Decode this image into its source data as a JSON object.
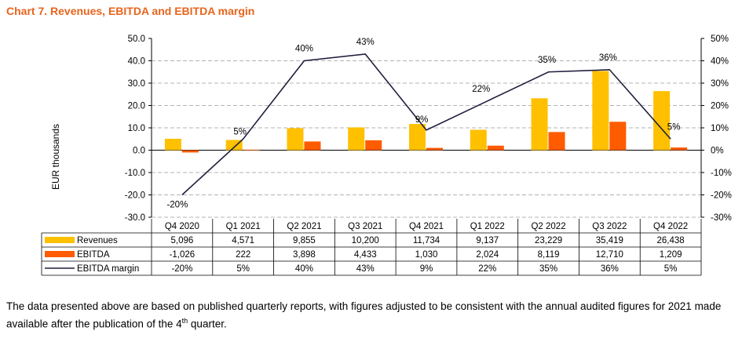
{
  "title": "Chart 7. Revenues, EBITDA and EBITDA margin",
  "footnote": {
    "part1": "The data presented above are based on published quarterly reports, with figures adjusted to be consistent with the annual audited figures for 2021 made available after the publication of the 4",
    "sup": "th",
    "part2": " quarter."
  },
  "chart_data": {
    "type": "bar",
    "ylabel": "EUR thousands",
    "ylim": [
      -30,
      50
    ],
    "y_ticks": [
      "50.0",
      "40.0",
      "30.0",
      "20.0",
      "10.0",
      "0.0",
      "-10.0",
      "-20.0",
      "-30.0"
    ],
    "y2lim": [
      -30,
      50
    ],
    "y2_ticks": [
      "50%",
      "40%",
      "30%",
      "20%",
      "10%",
      "0%",
      "-10%",
      "-20%",
      "-30%"
    ],
    "grid": true,
    "categories": [
      "Q4 2020",
      "Q1 2021",
      "Q2 2021",
      "Q3 2021",
      "Q4 2021",
      "Q1 2022",
      "Q2 2022",
      "Q3 2022",
      "Q4 2022"
    ],
    "series": [
      {
        "name": "Revenues",
        "type": "bar",
        "color": "#FFC000",
        "values": [
          5.096,
          4.571,
          9.855,
          10.2,
          11.734,
          9.137,
          23.229,
          35.419,
          26.438
        ],
        "table": [
          "5,096",
          "4,571",
          "9,855",
          "10,200",
          "11,734",
          "9,137",
          "23,229",
          "35,419",
          "26,438"
        ]
      },
      {
        "name": "EBITDA",
        "type": "bar",
        "color": "#FF5B00",
        "values": [
          -1.026,
          0.222,
          3.898,
          4.433,
          1.03,
          2.024,
          8.119,
          12.71,
          1.209
        ],
        "table": [
          "-1,026",
          "222",
          "3,898",
          "4,433",
          "1,030",
          "2,024",
          "8,119",
          "12,710",
          "1,209"
        ]
      },
      {
        "name": "EBITDA margin",
        "type": "line",
        "axis": "right",
        "color": "#1F1F3D",
        "values": [
          -20,
          5,
          40,
          43,
          9,
          22,
          35,
          36,
          5
        ],
        "labels": [
          "-20%",
          "5%",
          "40%",
          "43%",
          "9%",
          "22%",
          "35%",
          "36%",
          "5%"
        ],
        "table": [
          "-20%",
          "5%",
          "40%",
          "43%",
          "9%",
          "22%",
          "35%",
          "36%",
          "5%"
        ]
      }
    ]
  }
}
